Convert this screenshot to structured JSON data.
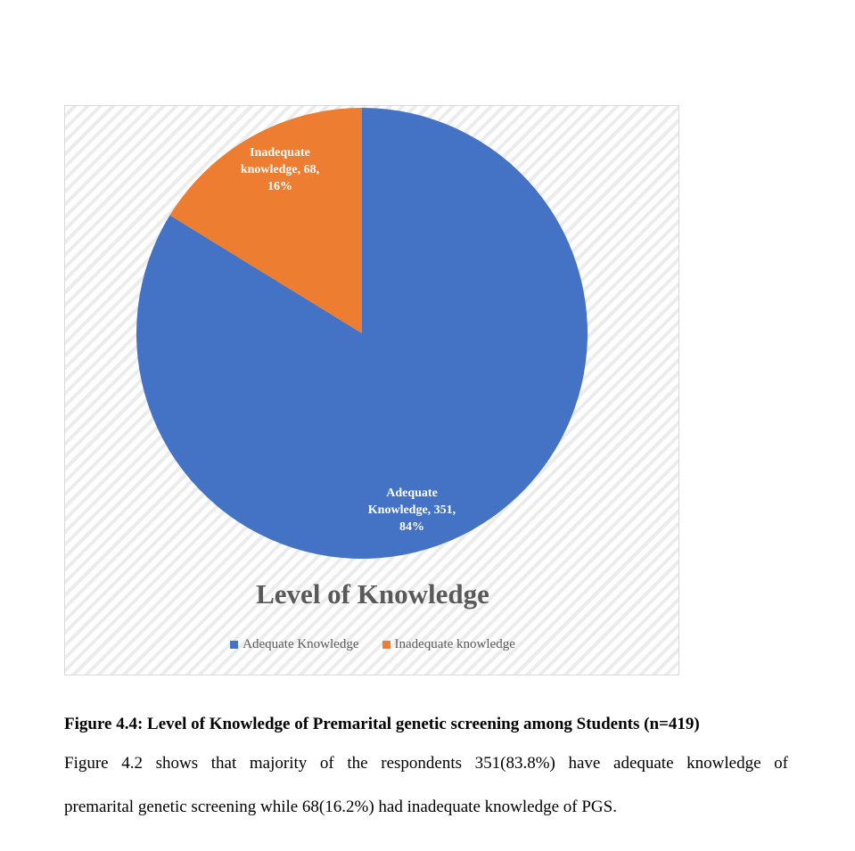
{
  "chart_data": {
    "type": "pie",
    "title": "Level of Knowledge",
    "slices": [
      {
        "name": "Adequate Knowledge",
        "value": 351,
        "percent": "84%",
        "label_lines": [
          "Adequate",
          "Knowledge, 351,",
          "84%"
        ],
        "color": "#4472c4"
      },
      {
        "name": "Inadequate knowledge",
        "value": 68,
        "percent": "16%",
        "label_lines": [
          "Inadequate",
          "knowledge, 68,",
          "16%"
        ],
        "color": "#ed7d31"
      }
    ],
    "start_angle": "12 o'clock, clockwise",
    "legend_position": "bottom"
  },
  "document": {
    "caption": "Figure 4.4: Level of Knowledge of Premarital genetic screening among Students (n=419)",
    "paragraph_line1": "Figure 4.2 shows that majority of the respondents 351(83.8%) have adequate knowledge of",
    "paragraph_line2": "premarital genetic screening while 68(16.2%) had inadequate knowledge of PGS."
  }
}
